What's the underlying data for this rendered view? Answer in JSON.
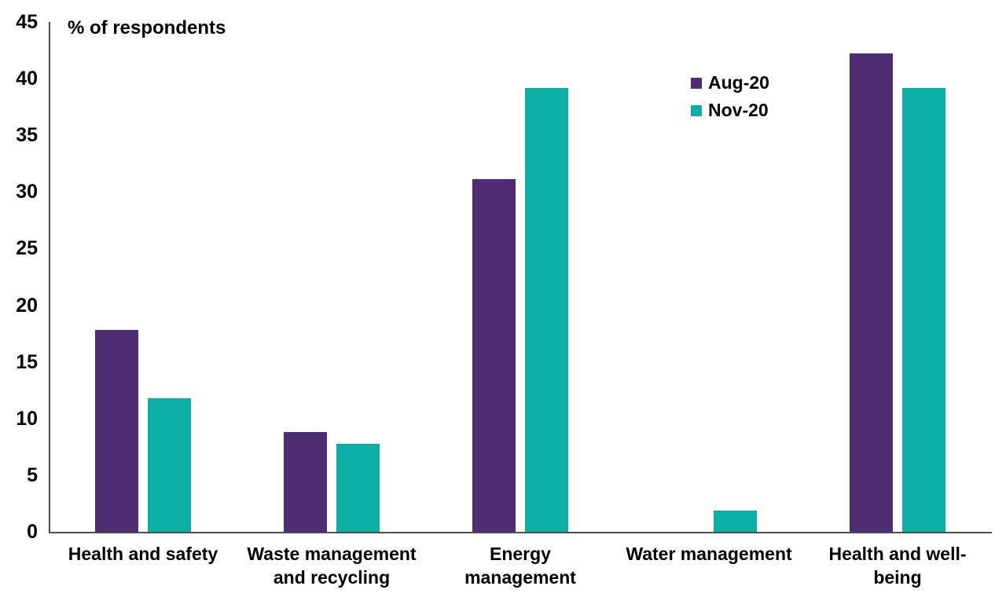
{
  "chart": {
    "ylabel": "% of respondents",
    "axis_color": "#4d4d4d",
    "background": "#ffffff"
  },
  "chart_data": {
    "type": "bar",
    "title": "",
    "xlabel": "",
    "ylabel": "% of respondents",
    "categories": [
      "Health and safety",
      "Waste management\nand recycling",
      "Energy\nmanagement",
      "Water management",
      "Health and well-\nbeing"
    ],
    "series": [
      {
        "name": "Aug-20",
        "color": "#4E2D72",
        "values": [
          17.8,
          8.8,
          31.1,
          0,
          42.2
        ]
      },
      {
        "name": "Nov-20",
        "color": "#0CAEA6",
        "values": [
          11.8,
          7.8,
          39.2,
          1.9,
          39.2
        ]
      }
    ],
    "ylim": [
      0,
      45
    ],
    "ytick_step": 5,
    "grid": false,
    "legend_position": "upper-right"
  }
}
